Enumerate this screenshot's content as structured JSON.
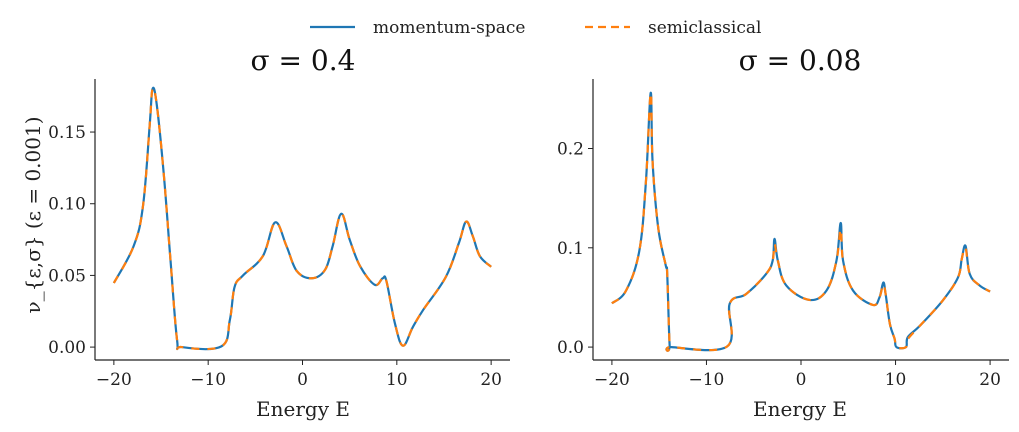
{
  "legend": {
    "placement": "top-center",
    "items": [
      {
        "label": "momentum-space",
        "color": "#1f77b4",
        "style": "solid"
      },
      {
        "label": "semiclassical",
        "color": "#ff7f0e",
        "style": "dashed"
      }
    ]
  },
  "chart_data": [
    {
      "type": "line",
      "title": "σ = 0.4",
      "xlabel": "Energy E",
      "ylabel": "ν_{ε,σ} (ε = 0.001)",
      "xlim": [
        -22,
        22
      ],
      "ylim": [
        -0.009,
        0.187
      ],
      "xticks": [
        -20,
        -10,
        0,
        10,
        20
      ],
      "xtick_labels": [
        "−20",
        "−10",
        "0",
        "10",
        "20"
      ],
      "yticks": [
        0,
        0.05,
        0.1,
        0.15
      ],
      "ytick_labels": [
        "0.00",
        "0.05",
        "0.10",
        "0.15"
      ],
      "grid": false,
      "x": [
        -20,
        -17.9,
        -16.9,
        -16.2,
        -15.9,
        -15.45,
        -14.7,
        -14.0,
        -13.3,
        -12.8,
        -8.6,
        -7.7,
        -7.2,
        -6.3,
        -4.2,
        -2.9,
        -1.7,
        -0.6,
        1.0,
        2.4,
        3.2,
        4.1,
        5.0,
        6.1,
        7.65,
        8.5,
        8.9,
        9.8,
        10.65,
        11.7,
        12.8,
        15.2,
        16.6,
        17.35,
        18.05,
        18.8,
        20
      ],
      "series": [
        {
          "name": "momentum-space",
          "y": [
            0.0447,
            0.0705,
            0.099,
            0.155,
            0.18,
            0.169,
            0.12,
            0.061,
            0.005,
            0,
            0.0005,
            0.019,
            0.042,
            0.05,
            0.0635,
            0.087,
            0.0705,
            0.053,
            0.048,
            0.054,
            0.0705,
            0.093,
            0.075,
            0.0565,
            0.0435,
            0.048,
            0.046,
            0.0165,
            0.001,
            0.014,
            0.026,
            0.049,
            0.073,
            0.0875,
            0.0775,
            0.0635,
            0.056
          ]
        },
        {
          "name": "semiclassical",
          "y": [
            0.0447,
            0.0705,
            0.099,
            0.155,
            0.18,
            0.169,
            0.12,
            0.061,
            0.005,
            0,
            0.0005,
            0.019,
            0.042,
            0.05,
            0.0635,
            0.087,
            0.0705,
            0.053,
            0.048,
            0.054,
            0.0705,
            0.093,
            0.075,
            0.0565,
            0.0435,
            0.048,
            0.046,
            0.0165,
            0.001,
            0.014,
            0.026,
            0.049,
            0.073,
            0.0875,
            0.0775,
            0.0635,
            0.056
          ]
        }
      ]
    },
    {
      "type": "line",
      "title": "σ = 0.08",
      "xlabel": "Energy E",
      "ylabel": "",
      "xlim": [
        -22,
        22
      ],
      "ylim": [
        -0.013,
        0.27
      ],
      "xticks": [
        -20,
        -10,
        0,
        10,
        20
      ],
      "xtick_labels": [
        "−20",
        "−10",
        "0",
        "10",
        "20"
      ],
      "yticks": [
        0,
        0.1,
        0.2
      ],
      "ytick_labels": [
        "0.0",
        "0.1",
        "0.2"
      ],
      "grid": false,
      "x": [
        -20,
        -18.5,
        -17.1,
        -16.4,
        -15.9,
        -15.7,
        -15.1,
        -14.3,
        -14.15,
        -13.9,
        -13.7,
        -7.8,
        -7.55,
        -5.8,
        -3.7,
        -3.0,
        -2.8,
        -2.45,
        -1.55,
        0.9,
        2.7,
        3.75,
        4.2,
        4.45,
        5.5,
        7.6,
        8.3,
        8.7,
        8.95,
        9.4,
        9.9,
        10.1,
        11.1,
        11.3,
        12.6,
        15.0,
        16.6,
        17.0,
        17.4,
        17.85,
        18.9,
        20
      ],
      "series": [
        {
          "name": "momentum-space",
          "y": [
            0.0441,
            0.057,
            0.097,
            0.167,
            0.256,
            0.187,
            0.12,
            0.082,
            0.0736,
            0.003,
            0,
            0.0007,
            0.0435,
            0.0535,
            0.0736,
            0.087,
            0.109,
            0.087,
            0.062,
            0.0475,
            0.057,
            0.087,
            0.125,
            0.087,
            0.057,
            0.0425,
            0.05,
            0.065,
            0.0535,
            0.0234,
            0.0084,
            0,
            0,
            0.01,
            0.0217,
            0.047,
            0.07,
            0.0886,
            0.102,
            0.0736,
            0.062,
            0.056
          ]
        },
        {
          "name": "semiclassical",
          "y": [
            0.0441,
            0.057,
            0.097,
            0.167,
            0.256,
            0.187,
            0.12,
            0.082,
            0.0736,
            0.003,
            0,
            0.0007,
            0.0435,
            0.0535,
            0.0736,
            0.087,
            0.104,
            0.087,
            0.062,
            0.0475,
            0.057,
            0.087,
            0.119,
            0.087,
            0.057,
            0.0425,
            0.05,
            0.063,
            0.0535,
            0.0234,
            0.0084,
            0,
            0,
            0.008,
            0.0217,
            0.047,
            0.07,
            0.0886,
            0.1,
            0.0736,
            0.062,
            0.056
          ]
        }
      ]
    }
  ]
}
